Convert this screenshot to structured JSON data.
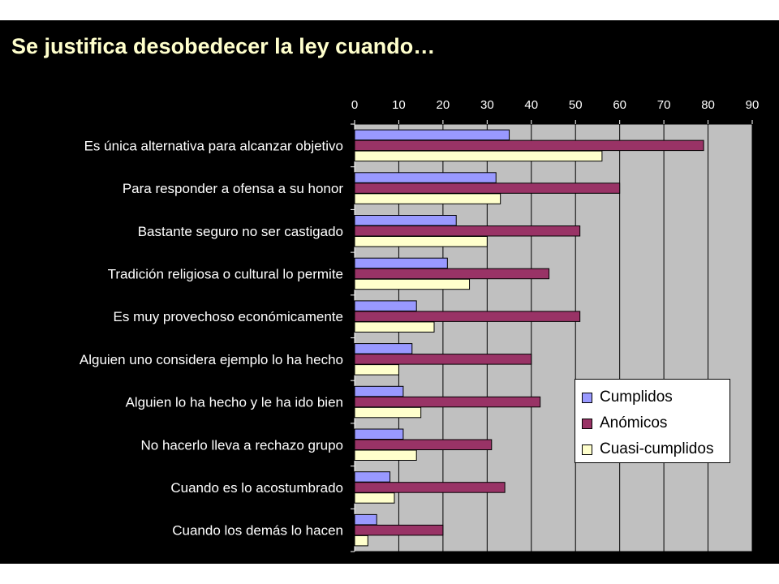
{
  "slide": {
    "background": "#000000",
    "title_color": "#ffffcc"
  },
  "chart_data": {
    "type": "bar",
    "orientation": "horizontal",
    "title": "Se justifica desobedecer la ley cuando…",
    "xlabel": "",
    "ylabel": "",
    "xlim": [
      0,
      90
    ],
    "x_ticks": [
      "0",
      "10",
      "20",
      "30",
      "40",
      "50",
      "60",
      "70",
      "80",
      "90"
    ],
    "x_axis_position": "top",
    "grid": true,
    "plot_background": "#c0c0c0",
    "legend_position": "lower-right",
    "categories": [
      "Es única alternativa para alcanzar objetivo",
      "Para responder a ofensa a su honor",
      "Bastante seguro no ser castigado",
      "Tradición religiosa o cultural lo permite",
      "Es muy provechoso económicamente",
      "Alguien uno considera ejemplo lo ha hecho",
      "Alguien lo ha hecho y le ha ido bien",
      "No hacerlo lleva a rechazo grupo",
      "Cuando es lo acostumbrado",
      "Cuando los demás lo hacen"
    ],
    "series": [
      {
        "name": "Cumplidos",
        "color": "#9999ff",
        "values": [
          35,
          32,
          23,
          21,
          14,
          13,
          11,
          11,
          8,
          5
        ]
      },
      {
        "name": "Anómicos",
        "color": "#993366",
        "values": [
          79,
          60,
          51,
          44,
          51,
          40,
          42,
          31,
          34,
          20
        ]
      },
      {
        "name": "Cuasi-cumplidos",
        "color": "#ffffcc",
        "values": [
          56,
          33,
          30,
          26,
          18,
          10,
          15,
          14,
          9,
          3
        ]
      }
    ]
  }
}
